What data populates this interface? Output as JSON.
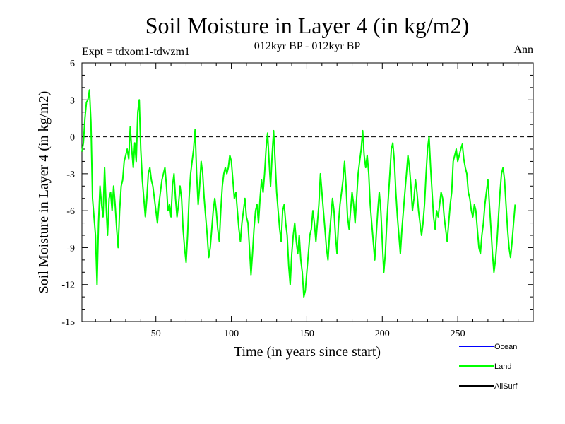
{
  "chart_data": {
    "type": "line",
    "title": "Soil Moisture in Layer 4 (in kg/m2)",
    "subtitle_left": "Expt = tdxom1-tdwzm1",
    "subtitle_center": "012kyr BP - 012kyr BP",
    "subtitle_right": "Ann",
    "xlabel": "Time (in years since start)",
    "ylabel": "Soil Moisture in Layer 4 (in kg/m2)",
    "xlim": [
      1,
      300
    ],
    "ylim": [
      -15,
      6
    ],
    "xticks": [
      50,
      100,
      150,
      200,
      250
    ],
    "yticks": [
      6,
      3,
      0,
      -3,
      -6,
      -9,
      -12,
      -15
    ],
    "reference_line": 0,
    "legend": [
      {
        "name": "Ocean",
        "color": "#0000ff"
      },
      {
        "name": "Land",
        "color": "#00ff00"
      },
      {
        "name": "AllSurf",
        "color": "#000000"
      }
    ],
    "series": [
      {
        "name": "Land",
        "color": "#00ff00",
        "x_start": 1,
        "x_step": 1,
        "values": [
          -1.2,
          -0.5,
          1.5,
          2.8,
          3.0,
          3.8,
          1.2,
          -5.0,
          -6.5,
          -8.0,
          -12.0,
          -7.0,
          -4.0,
          -5.5,
          -6.5,
          -2.5,
          -5.5,
          -8.0,
          -5.0,
          -4.5,
          -6.0,
          -4.0,
          -5.5,
          -7.5,
          -9.0,
          -6.0,
          -4.0,
          -3.5,
          -2.0,
          -1.5,
          -1.0,
          -1.8,
          0.8,
          -1.0,
          -2.5,
          -0.5,
          -2.0,
          2.0,
          3.0,
          -1.0,
          -3.5,
          -5.0,
          -6.5,
          -5.0,
          -3.0,
          -2.5,
          -3.5,
          -4.0,
          -5.0,
          -6.0,
          -7.0,
          -5.5,
          -4.5,
          -3.5,
          -3.0,
          -2.5,
          -4.0,
          -6.0,
          -5.5,
          -6.5,
          -4.0,
          -3.0,
          -5.0,
          -6.5,
          -5.5,
          -4.0,
          -5.0,
          -7.5,
          -9.0,
          -10.2,
          -8.0,
          -5.0,
          -3.0,
          -2.0,
          -1.0,
          0.6,
          -3.0,
          -5.5,
          -4.0,
          -2.0,
          -3.0,
          -5.0,
          -6.5,
          -8.0,
          -9.8,
          -9.0,
          -7.5,
          -6.0,
          -5.0,
          -6.0,
          -7.5,
          -8.5,
          -6.0,
          -4.0,
          -3.0,
          -2.5,
          -3.0,
          -2.5,
          -1.5,
          -2.0,
          -3.5,
          -5.0,
          -4.5,
          -6.0,
          -7.5,
          -8.5,
          -7.0,
          -6.0,
          -5.0,
          -6.5,
          -7.0,
          -9.0,
          -11.2,
          -9.5,
          -7.5,
          -6.0,
          -5.5,
          -7.0,
          -5.0,
          -3.5,
          -4.5,
          -3.0,
          -1.0,
          0.3,
          -2.0,
          -4.0,
          -1.5,
          0.5,
          -2.0,
          -4.5,
          -6.0,
          -7.5,
          -8.5,
          -6.0,
          -5.5,
          -7.0,
          -8.0,
          -10.5,
          -12.0,
          -9.5,
          -8.0,
          -7.0,
          -8.5,
          -9.5,
          -8.0,
          -10.0,
          -11.0,
          -13.0,
          -12.5,
          -11.0,
          -9.5,
          -8.0,
          -7.5,
          -6.0,
          -7.0,
          -8.5,
          -7.0,
          -5.5,
          -3.0,
          -4.5,
          -6.0,
          -7.5,
          -9.0,
          -10.0,
          -8.0,
          -6.5,
          -5.0,
          -6.0,
          -8.0,
          -9.5,
          -7.0,
          -5.5,
          -4.5,
          -3.5,
          -2.0,
          -4.0,
          -6.5,
          -7.5,
          -6.0,
          -4.5,
          -5.5,
          -7.0,
          -5.0,
          -3.0,
          -2.0,
          -1.0,
          0.5,
          -1.5,
          -2.5,
          -1.5,
          -3.0,
          -5.5,
          -7.0,
          -8.5,
          -10.0,
          -8.0,
          -6.0,
          -4.5,
          -6.0,
          -8.5,
          -11.0,
          -9.5,
          -7.0,
          -5.0,
          -3.0,
          -1.0,
          -0.5,
          -2.0,
          -4.5,
          -6.5,
          -8.0,
          -9.5,
          -7.5,
          -6.0,
          -4.5,
          -3.0,
          -1.5,
          -2.5,
          -4.0,
          -6.0,
          -5.0,
          -3.5,
          -4.5,
          -6.0,
          -7.0,
          -8.0,
          -7.0,
          -5.5,
          -3.0,
          -1.0,
          0.0,
          -2.5,
          -4.5,
          -6.5,
          -7.5,
          -6.0,
          -6.5,
          -5.5,
          -4.5,
          -5.0,
          -6.5,
          -7.5,
          -8.5,
          -7.0,
          -5.5,
          -4.5,
          -2.0,
          -1.5,
          -1.0,
          -2.0,
          -1.5,
          -1.0,
          -0.6,
          -1.8,
          -2.5,
          -3.0,
          -4.5,
          -5.0,
          -6.0,
          -6.5,
          -5.5,
          -6.0,
          -7.5,
          -9.0,
          -9.5,
          -8.0,
          -7.0,
          -5.5,
          -4.5,
          -3.5,
          -5.5,
          -7.5,
          -9.5,
          -11.0,
          -10.0,
          -8.5,
          -6.5,
          -4.5,
          -3.0,
          -2.5,
          -3.5,
          -5.5,
          -7.5,
          -9.0,
          -9.8,
          -8.5,
          -7.0,
          -5.5
        ]
      },
      {
        "name": "Ocean",
        "color": "#0000ff",
        "values": []
      },
      {
        "name": "AllSurf",
        "color": "#000000",
        "values": []
      }
    ]
  }
}
